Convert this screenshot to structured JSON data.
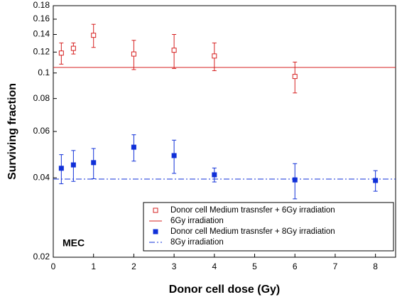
{
  "chart_data": {
    "type": "scatter",
    "xlabel": "Donor cell dose (Gy)",
    "ylabel": "Surviving fraction",
    "annotation": "MEC",
    "xlim": [
      0,
      8.5
    ],
    "xticks": [
      0,
      1,
      2,
      3,
      4,
      5,
      6,
      7,
      8
    ],
    "ylim": [
      0.02,
      0.18
    ],
    "yticks": [
      0.02,
      0.04,
      0.06,
      0.08,
      0.1,
      0.12,
      0.14,
      0.16,
      0.18
    ],
    "log_y": true,
    "legend": "lower right",
    "series": [
      {
        "name": "Donor cell Medium trasnsfer + 6Gy irradiation",
        "color": "#d62020",
        "marker": "open-square",
        "x": [
          0.2,
          0.5,
          1,
          2,
          3,
          4,
          6
        ],
        "values": [
          0.119,
          0.124,
          0.139,
          0.118,
          0.122,
          0.116,
          0.097
        ],
        "errors": [
          0.011,
          0.006,
          0.014,
          0.015,
          0.018,
          0.014,
          0.013
        ]
      },
      {
        "name": "6Gy irradiation",
        "color": "#d62020",
        "kind": "hline",
        "dash": "solid",
        "y": 0.105
      },
      {
        "name": "Donor cell Medium trasnsfer + 8Gy irradiation",
        "color": "#1030d8",
        "marker": "filled-square",
        "x": [
          0.2,
          0.5,
          1,
          2,
          3,
          4,
          6,
          8
        ],
        "values": [
          0.0435,
          0.0448,
          0.0457,
          0.0523,
          0.0486,
          0.0411,
          0.0393,
          0.0391
        ],
        "errors": [
          0.0055,
          0.006,
          0.006,
          0.006,
          0.007,
          0.0025,
          0.006,
          0.0035
        ]
      },
      {
        "name": "8Gy irradiation",
        "color": "#1030d8",
        "kind": "hline",
        "dash": "dashdot",
        "y": 0.0396
      }
    ]
  }
}
